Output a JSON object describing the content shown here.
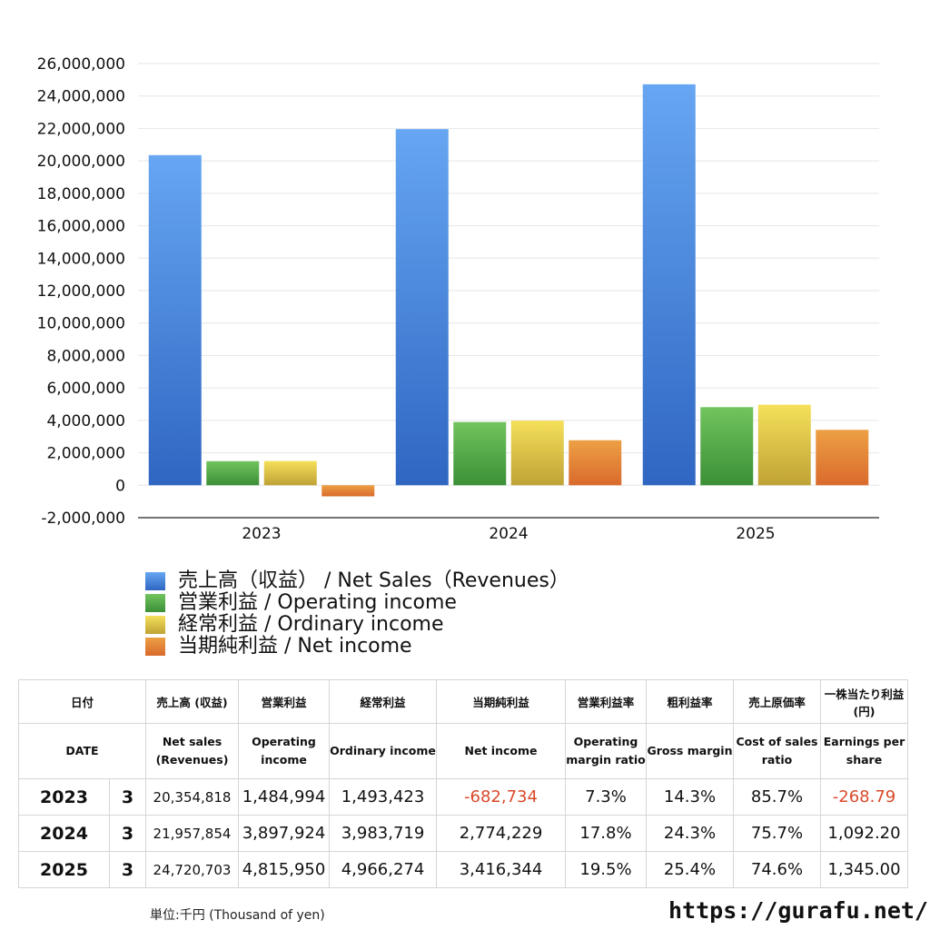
{
  "chart_data": {
    "type": "bar",
    "categories": [
      "2023",
      "2024",
      "2025"
    ],
    "ylim": [
      -2000000,
      26000000
    ],
    "ytick_step": 2000000,
    "grid": true,
    "legend_position": "bottom",
    "series": [
      {
        "name": "売上高（収益） / Net Sales（Revenues）",
        "values": [
          20354818,
          21957854,
          24720703
        ],
        "color_top": "#66a6f2",
        "color_bottom": "#2f66c2"
      },
      {
        "name": "営業利益 / Operating income",
        "values": [
          1484994,
          3897924,
          4815950
        ],
        "color_top": "#72c45e",
        "color_bottom": "#3b8f36"
      },
      {
        "name": "経常利益 / Ordinary income",
        "values": [
          1493423,
          3983719,
          4966274
        ],
        "color_top": "#f5e05a",
        "color_bottom": "#bfa236"
      },
      {
        "name": "当期純利益 / Net income",
        "values": [
          -682734,
          2774229,
          3416344
        ],
        "color_top": "#eda044",
        "color_bottom": "#d96a2d"
      }
    ]
  },
  "table": {
    "headers_jp": [
      "日付",
      "売上高 (収益)",
      "営業利益",
      "経常利益",
      "当期純利益",
      "営業利益率",
      "粗利益率",
      "売上原価率",
      "一株当たり利益(円)"
    ],
    "headers_en": [
      "DATE",
      "Net sales (Revenues)",
      "Operating income",
      "Ordinary income",
      "Net income",
      "Operating margin ratio",
      "Gross margin",
      "Cost of sales ratio",
      "Earnings per share"
    ],
    "rows": [
      {
        "year": "2023",
        "month": "3",
        "net_sales": "20,354,818",
        "operating": "1,484,994",
        "ordinary": "1,493,423",
        "net_income": "-682,734",
        "op_margin": "7.3%",
        "gross_margin": "14.3%",
        "cost_ratio": "85.7%",
        "eps": "-268.79"
      },
      {
        "year": "2024",
        "month": "3",
        "net_sales": "21,957,854",
        "operating": "3,897,924",
        "ordinary": "3,983,719",
        "net_income": "2,774,229",
        "op_margin": "17.8%",
        "gross_margin": "24.3%",
        "cost_ratio": "75.7%",
        "eps": "1,092.20"
      },
      {
        "year": "2025",
        "month": "3",
        "net_sales": "24,720,703",
        "operating": "4,815,950",
        "ordinary": "4,966,274",
        "net_income": "3,416,344",
        "op_margin": "19.5%",
        "gross_margin": "25.4%",
        "cost_ratio": "74.6%",
        "eps": "1,345.00"
      }
    ]
  },
  "footer": {
    "unit": "単位:千円 (Thousand of yen)",
    "site": "https://gurafu.net/"
  }
}
